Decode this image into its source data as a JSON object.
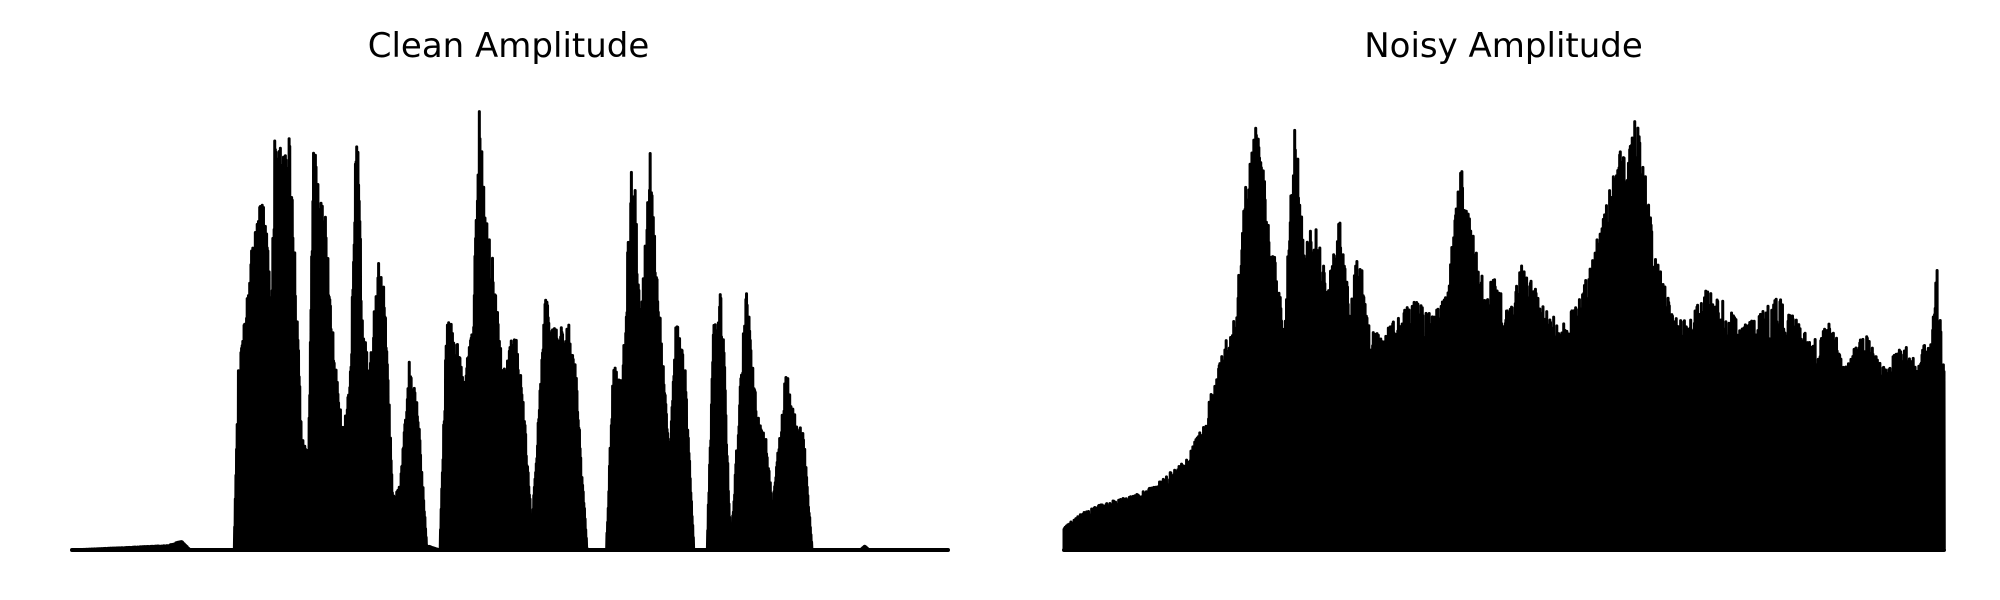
{
  "chart_data": [
    {
      "type": "line",
      "title": "Clean Amplitude",
      "xlabel": "",
      "ylabel": "",
      "axes_visible": false,
      "grid": false,
      "color": "#000000",
      "ylim": [
        0,
        1
      ],
      "envelope": [
        [
          0.0,
          0.0
        ],
        [
          0.11,
          0.01
        ],
        [
          0.125,
          0.02
        ],
        [
          0.135,
          0.0
        ],
        [
          0.185,
          0.0
        ],
        [
          0.19,
          0.4
        ],
        [
          0.198,
          0.52
        ],
        [
          0.205,
          0.66
        ],
        [
          0.215,
          0.78
        ],
        [
          0.222,
          0.74
        ],
        [
          0.228,
          0.55
        ],
        [
          0.232,
          1.0
        ],
        [
          0.24,
          0.86
        ],
        [
          0.248,
          0.92
        ],
        [
          0.256,
          0.63
        ],
        [
          0.262,
          0.25
        ],
        [
          0.27,
          0.22
        ],
        [
          0.276,
          0.96
        ],
        [
          0.284,
          0.77
        ],
        [
          0.29,
          0.73
        ],
        [
          0.3,
          0.42
        ],
        [
          0.31,
          0.26
        ],
        [
          0.318,
          0.4
        ],
        [
          0.325,
          0.98
        ],
        [
          0.332,
          0.5
        ],
        [
          0.34,
          0.4
        ],
        [
          0.35,
          0.66
        ],
        [
          0.358,
          0.55
        ],
        [
          0.366,
          0.12
        ],
        [
          0.375,
          0.15
        ],
        [
          0.385,
          0.42
        ],
        [
          0.395,
          0.31
        ],
        [
          0.405,
          0.01
        ],
        [
          0.42,
          0.0
        ],
        [
          0.428,
          0.52
        ],
        [
          0.438,
          0.48
        ],
        [
          0.448,
          0.38
        ],
        [
          0.458,
          0.52
        ],
        [
          0.465,
          0.97
        ],
        [
          0.472,
          0.75
        ],
        [
          0.48,
          0.65
        ],
        [
          0.492,
          0.4
        ],
        [
          0.505,
          0.5
        ],
        [
          0.515,
          0.34
        ],
        [
          0.525,
          0.05
        ],
        [
          0.54,
          0.56
        ],
        [
          0.552,
          0.49
        ],
        [
          0.566,
          0.51
        ],
        [
          0.575,
          0.4
        ],
        [
          0.588,
          0.0
        ],
        [
          0.61,
          0.0
        ],
        [
          0.618,
          0.42
        ],
        [
          0.628,
          0.38
        ],
        [
          0.64,
          0.92
        ],
        [
          0.65,
          0.54
        ],
        [
          0.66,
          0.88
        ],
        [
          0.672,
          0.5
        ],
        [
          0.682,
          0.2
        ],
        [
          0.69,
          0.52
        ],
        [
          0.7,
          0.4
        ],
        [
          0.71,
          0.0
        ],
        [
          0.725,
          0.0
        ],
        [
          0.732,
          0.5
        ],
        [
          0.742,
          0.58
        ],
        [
          0.752,
          0.0
        ],
        [
          0.77,
          0.6
        ],
        [
          0.782,
          0.3
        ],
        [
          0.792,
          0.25
        ],
        [
          0.8,
          0.1
        ],
        [
          0.815,
          0.4
        ],
        [
          0.825,
          0.31
        ],
        [
          0.835,
          0.26
        ],
        [
          0.845,
          0.0
        ],
        [
          0.9,
          0.0
        ],
        [
          0.905,
          0.01
        ],
        [
          0.91,
          0.0
        ],
        [
          1.0,
          0.0
        ]
      ]
    },
    {
      "type": "line",
      "title": "Noisy Amplitude",
      "xlabel": "",
      "ylabel": "",
      "axes_visible": false,
      "grid": false,
      "color": "#000000",
      "ylim": [
        0,
        1
      ],
      "envelope": [
        [
          0.0,
          0.05
        ],
        [
          0.02,
          0.08
        ],
        [
          0.04,
          0.1
        ],
        [
          0.06,
          0.11
        ],
        [
          0.08,
          0.12
        ],
        [
          0.1,
          0.14
        ],
        [
          0.12,
          0.17
        ],
        [
          0.14,
          0.2
        ],
        [
          0.16,
          0.29
        ],
        [
          0.18,
          0.44
        ],
        [
          0.195,
          0.52
        ],
        [
          0.205,
          0.78
        ],
        [
          0.215,
          0.95
        ],
        [
          0.225,
          0.88
        ],
        [
          0.235,
          0.72
        ],
        [
          0.25,
          0.5
        ],
        [
          0.262,
          0.98
        ],
        [
          0.272,
          0.68
        ],
        [
          0.285,
          0.72
        ],
        [
          0.3,
          0.58
        ],
        [
          0.315,
          0.76
        ],
        [
          0.325,
          0.55
        ],
        [
          0.335,
          0.68
        ],
        [
          0.345,
          0.5
        ],
        [
          0.36,
          0.47
        ],
        [
          0.38,
          0.52
        ],
        [
          0.4,
          0.55
        ],
        [
          0.42,
          0.52
        ],
        [
          0.435,
          0.56
        ],
        [
          0.45,
          0.86
        ],
        [
          0.462,
          0.72
        ],
        [
          0.478,
          0.58
        ],
        [
          0.49,
          0.6
        ],
        [
          0.505,
          0.52
        ],
        [
          0.52,
          0.63
        ],
        [
          0.535,
          0.58
        ],
        [
          0.55,
          0.52
        ],
        [
          0.57,
          0.5
        ],
        [
          0.59,
          0.58
        ],
        [
          0.605,
          0.68
        ],
        [
          0.62,
          0.8
        ],
        [
          0.632,
          0.88
        ],
        [
          0.64,
          0.85
        ],
        [
          0.65,
          0.97
        ],
        [
          0.66,
          0.85
        ],
        [
          0.672,
          0.65
        ],
        [
          0.69,
          0.55
        ],
        [
          0.71,
          0.5
        ],
        [
          0.73,
          0.58
        ],
        [
          0.75,
          0.55
        ],
        [
          0.77,
          0.49
        ],
        [
          0.79,
          0.52
        ],
        [
          0.81,
          0.56
        ],
        [
          0.83,
          0.52
        ],
        [
          0.85,
          0.46
        ],
        [
          0.87,
          0.5
        ],
        [
          0.89,
          0.42
        ],
        [
          0.91,
          0.48
        ],
        [
          0.93,
          0.4
        ],
        [
          0.95,
          0.45
        ],
        [
          0.97,
          0.44
        ],
        [
          0.985,
          0.46
        ],
        [
          0.992,
          0.62
        ],
        [
          1.0,
          0.4
        ]
      ]
    }
  ]
}
